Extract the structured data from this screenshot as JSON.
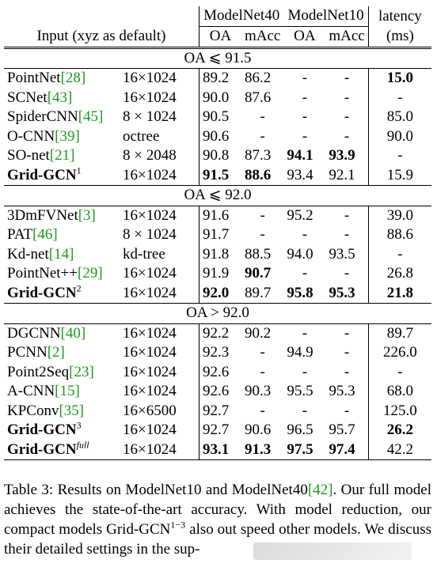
{
  "header": {
    "group1": "ModelNet40",
    "group2": "ModelNet10",
    "latency": "latency",
    "input_col": "Input (xyz as default)",
    "oa": "OA",
    "macc": "mAcc",
    "ms": "(ms)"
  },
  "sections": [
    {
      "title": "OA ⩽ 91.5",
      "rows": [
        {
          "name": "PointNet",
          "cite": "[28]",
          "input": "16×1024",
          "oa40": "89.2",
          "macc40": "86.2",
          "oa10": "-",
          "macc10": "-",
          "lat": "15.0",
          "sup": "",
          "bold_name": false,
          "bold": [
            "lat"
          ]
        },
        {
          "name": "SCNet",
          "cite": "[43]",
          "input": "16×1024",
          "oa40": "90.0",
          "macc40": "87.6",
          "oa10": "-",
          "macc10": "-",
          "lat": "-",
          "sup": "",
          "bold_name": false,
          "bold": []
        },
        {
          "name": "SpiderCNN",
          "cite": "[45]",
          "input": "8 × 1024",
          "oa40": "90.5",
          "macc40": "-",
          "oa10": "-",
          "macc10": "-",
          "lat": "85.0",
          "sup": "",
          "bold_name": false,
          "bold": []
        },
        {
          "name": "O-CNN",
          "cite": "[39]",
          "input": "octree",
          "oa40": "90.6",
          "macc40": "-",
          "oa10": "-",
          "macc10": "-",
          "lat": "90.0",
          "sup": "",
          "bold_name": false,
          "bold": []
        },
        {
          "name": "SO-net",
          "cite": "[21]",
          "input": "8 × 2048",
          "oa40": "90.8",
          "macc40": "87.3",
          "oa10": "94.1",
          "macc10": "93.9",
          "lat": "-",
          "sup": "",
          "bold_name": false,
          "bold": [
            "oa10",
            "macc10"
          ]
        },
        {
          "name": "Grid-GCN",
          "cite": "",
          "input": "16×1024",
          "oa40": "91.5",
          "macc40": "88.6",
          "oa10": "93.4",
          "macc10": "92.1",
          "lat": "15.9",
          "sup": "1",
          "bold_name": true,
          "bold": [
            "oa40",
            "macc40"
          ]
        }
      ]
    },
    {
      "title": "OA ⩽ 92.0",
      "rows": [
        {
          "name": "3DmFVNet",
          "cite": "[3]",
          "input": "16×1024",
          "oa40": "91.6",
          "macc40": "-",
          "oa10": "95.2",
          "macc10": "-",
          "lat": "39.0",
          "sup": "",
          "bold_name": false,
          "bold": []
        },
        {
          "name": "PAT",
          "cite": "[46]",
          "input": "8 × 1024",
          "oa40": "91.7",
          "macc40": "-",
          "oa10": "-",
          "macc10": "-",
          "lat": "88.6",
          "sup": "",
          "bold_name": false,
          "bold": []
        },
        {
          "name": "Kd-net",
          "cite": "[14]",
          "input": "kd-tree",
          "oa40": "91.8",
          "macc40": "88.5",
          "oa10": "94.0",
          "macc10": "93.5",
          "lat": "-",
          "sup": "",
          "bold_name": false,
          "bold": []
        },
        {
          "name": "PointNet++",
          "cite": "[29]",
          "input": "16×1024",
          "oa40": "91.9",
          "macc40": "90.7",
          "oa10": "-",
          "macc10": "-",
          "lat": "26.8",
          "sup": "",
          "bold_name": false,
          "bold": [
            "macc40"
          ]
        },
        {
          "name": "Grid-GCN",
          "cite": "",
          "input": "16×1024",
          "oa40": "92.0",
          "macc40": "89.7",
          "oa10": "95.8",
          "macc10": "95.3",
          "lat": "21.8",
          "sup": "2",
          "bold_name": true,
          "bold": [
            "oa40",
            "oa10",
            "macc10",
            "lat"
          ]
        }
      ]
    },
    {
      "title": "OA > 92.0",
      "rows": [
        {
          "name": "DGCNN",
          "cite": "[40]",
          "input": "16×1024",
          "oa40": "92.2",
          "macc40": "90.2",
          "oa10": "-",
          "macc10": "-",
          "lat": "89.7",
          "sup": "",
          "bold_name": false,
          "bold": []
        },
        {
          "name": "PCNN",
          "cite": "[2]",
          "input": "16×1024",
          "oa40": "92.3",
          "macc40": "-",
          "oa10": "94.9",
          "macc10": "-",
          "lat": "226.0",
          "sup": "",
          "bold_name": false,
          "bold": []
        },
        {
          "name": "Point2Seq",
          "cite": "[23]",
          "input": "16×1024",
          "oa40": "92.6",
          "macc40": "-",
          "oa10": "-",
          "macc10": "-",
          "lat": "-",
          "sup": "",
          "bold_name": false,
          "bold": []
        },
        {
          "name": "A-CNN",
          "cite": "[15]",
          "input": "16×1024",
          "oa40": "92.6",
          "macc40": "90.3",
          "oa10": "95.5",
          "macc10": "95.3",
          "lat": "68.0",
          "sup": "",
          "bold_name": false,
          "bold": []
        },
        {
          "name": "KPConv",
          "cite": "[35]",
          "input": "16×6500",
          "oa40": "92.7",
          "macc40": "-",
          "oa10": "-",
          "macc10": "-",
          "lat": "125.0",
          "sup": "",
          "bold_name": false,
          "bold": []
        },
        {
          "name": "Grid-GCN",
          "cite": "",
          "input": "16×1024",
          "oa40": "92.7",
          "macc40": "90.6",
          "oa10": "96.5",
          "macc10": "95.7",
          "lat": "26.2",
          "sup": "3",
          "bold_name": true,
          "bold": [
            "lat"
          ]
        },
        {
          "name": "Grid-GCN",
          "cite": "",
          "input": "16×1024",
          "oa40": "93.1",
          "macc40": "91.3",
          "oa10": "97.5",
          "macc10": "97.4",
          "lat": "42.2",
          "sup": "full",
          "bold_name": true,
          "bold": [
            "oa40",
            "macc40",
            "oa10",
            "macc10"
          ]
        }
      ]
    }
  ],
  "caption": {
    "part1": "Table 3: Results on ModelNet10 and ModelNet40",
    "cite": "[42]",
    "part2": ". Our full model achieves the state-of-the-art accuracy. With model reduction, our compact models Grid-GCN",
    "sup": "1−3",
    "part3": " also out speed other models. We discuss their detailed settings in the sup-"
  }
}
